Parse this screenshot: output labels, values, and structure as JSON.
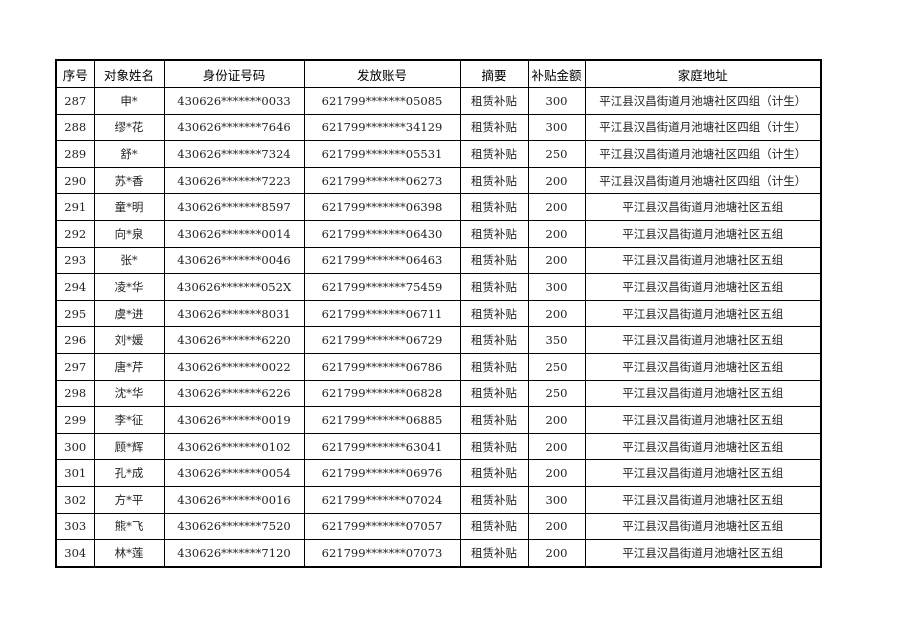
{
  "headers": [
    "序号",
    "对象姓名",
    "身份证号码",
    "发放账号",
    "摘要",
    "补贴金额",
    "家庭地址"
  ],
  "rows": [
    [
      "287",
      "申*",
      "430626*******0033",
      "621799*******05085",
      "租赁补贴",
      "300",
      "平江县汉昌街道月池塘社区四组（计生）"
    ],
    [
      "288",
      "缪*花",
      "430626*******7646",
      "621799*******34129",
      "租赁补贴",
      "300",
      "平江县汉昌街道月池塘社区四组（计生）"
    ],
    [
      "289",
      "舒*",
      "430626*******7324",
      "621799*******05531",
      "租赁补贴",
      "250",
      "平江县汉昌街道月池塘社区四组（计生）"
    ],
    [
      "290",
      "苏*香",
      "430626*******7223",
      "621799*******06273",
      "租赁补贴",
      "200",
      "平江县汉昌街道月池塘社区四组（计生）"
    ],
    [
      "291",
      "童*明",
      "430626*******8597",
      "621799*******06398",
      "租赁补贴",
      "200",
      "平江县汉昌街道月池塘社区五组"
    ],
    [
      "292",
      "向*泉",
      "430626*******0014",
      "621799*******06430",
      "租赁补贴",
      "200",
      "平江县汉昌街道月池塘社区五组"
    ],
    [
      "293",
      "张*",
      "430626*******0046",
      "621799*******06463",
      "租赁补贴",
      "200",
      "平江县汉昌街道月池塘社区五组"
    ],
    [
      "294",
      "凌*华",
      "430626*******052X",
      "621799*******75459",
      "租赁补贴",
      "300",
      "平江县汉昌街道月池塘社区五组"
    ],
    [
      "295",
      "虞*进",
      "430626*******8031",
      "621799*******06711",
      "租赁补贴",
      "200",
      "平江县汉昌街道月池塘社区五组"
    ],
    [
      "296",
      "刘*媛",
      "430626*******6220",
      "621799*******06729",
      "租赁补贴",
      "350",
      "平江县汉昌街道月池塘社区五组"
    ],
    [
      "297",
      "唐*芹",
      "430626*******0022",
      "621799*******06786",
      "租赁补贴",
      "250",
      "平江县汉昌街道月池塘社区五组"
    ],
    [
      "298",
      "沈*华",
      "430626*******6226",
      "621799*******06828",
      "租赁补贴",
      "250",
      "平江县汉昌街道月池塘社区五组"
    ],
    [
      "299",
      "李*征",
      "430626*******0019",
      "621799*******06885",
      "租赁补贴",
      "200",
      "平江县汉昌街道月池塘社区五组"
    ],
    [
      "300",
      "顾*辉",
      "430626*******0102",
      "621799*******63041",
      "租赁补贴",
      "200",
      "平江县汉昌街道月池塘社区五组"
    ],
    [
      "301",
      "孔*成",
      "430626*******0054",
      "621799*******06976",
      "租赁补贴",
      "200",
      "平江县汉昌街道月池塘社区五组"
    ],
    [
      "302",
      "方*平",
      "430626*******0016",
      "621799*******07024",
      "租赁补贴",
      "300",
      "平江县汉昌街道月池塘社区五组"
    ],
    [
      "303",
      "熊*飞",
      "430626*******7520",
      "621799*******07057",
      "租赁补贴",
      "200",
      "平江县汉昌街道月池塘社区五组"
    ],
    [
      "304",
      "林*莲",
      "430626*******7120",
      "621799*******07073",
      "租赁补贴",
      "200",
      "平江县汉昌街道月池塘社区五组"
    ]
  ]
}
